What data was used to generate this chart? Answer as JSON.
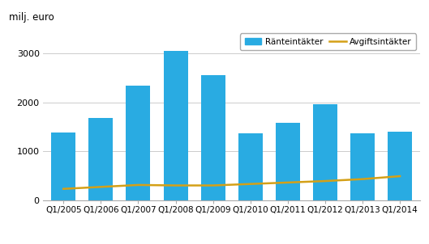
{
  "categories": [
    "Q1/2005",
    "Q1/2006",
    "Q1/2007",
    "Q1/2008",
    "Q1/2009",
    "Q1/2010",
    "Q1/2011",
    "Q1/2012",
    "Q1/2013",
    "Q1/2014"
  ],
  "bar_values": [
    1390,
    1680,
    2350,
    3050,
    2560,
    1360,
    1580,
    1960,
    1360,
    1400
  ],
  "line_values": [
    230,
    270,
    310,
    300,
    300,
    330,
    360,
    390,
    430,
    490
  ],
  "bar_color": "#29ABE2",
  "line_color": "#D4A017",
  "ylabel": "milj. euro",
  "ylim": [
    0,
    3500
  ],
  "yticks": [
    0,
    1000,
    2000,
    3000
  ],
  "legend_bar_label": "Ränteintäkter",
  "legend_line_label": "Avgiftsintäkter",
  "background_color": "#ffffff",
  "grid_color": "#cccccc",
  "bar_width": 0.65,
  "figwidth": 5.29,
  "figheight": 3.02,
  "dpi": 100
}
